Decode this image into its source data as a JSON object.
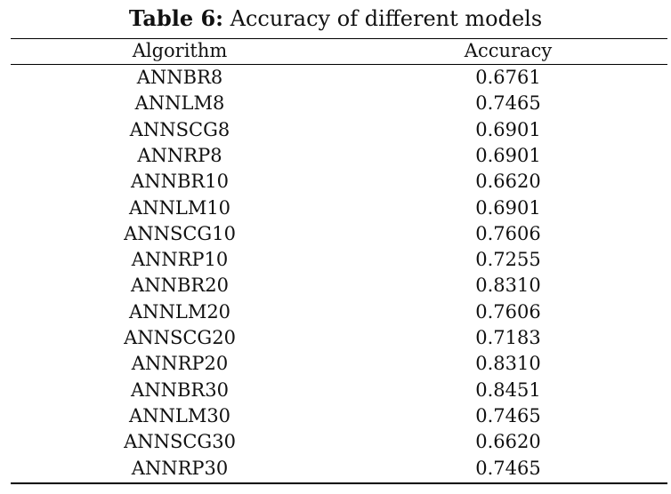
{
  "table": {
    "caption_label": "Table 6:",
    "caption_text": " Accuracy of different models",
    "columns": [
      "Algorithm",
      "Accuracy"
    ],
    "rows": [
      [
        "ANNBR8",
        "0.6761"
      ],
      [
        "ANNLM8",
        "0.7465"
      ],
      [
        "ANNSCG8",
        "0.6901"
      ],
      [
        "ANNRP8",
        "0.6901"
      ],
      [
        "ANNBR10",
        "0.6620"
      ],
      [
        "ANNLM10",
        "0.6901"
      ],
      [
        "ANNSCG10",
        "0.7606"
      ],
      [
        "ANNRP10",
        "0.7255"
      ],
      [
        "ANNBR20",
        "0.8310"
      ],
      [
        "ANNLM20",
        "0.7606"
      ],
      [
        "ANNSCG20",
        "0.7183"
      ],
      [
        "ANNRP20",
        "0.8310"
      ],
      [
        "ANNBR30",
        "0.8451"
      ],
      [
        "ANNLM30",
        "0.7465"
      ],
      [
        "ANNSCG30",
        "0.6620"
      ],
      [
        "ANNRP30",
        "0.7465"
      ]
    ]
  }
}
